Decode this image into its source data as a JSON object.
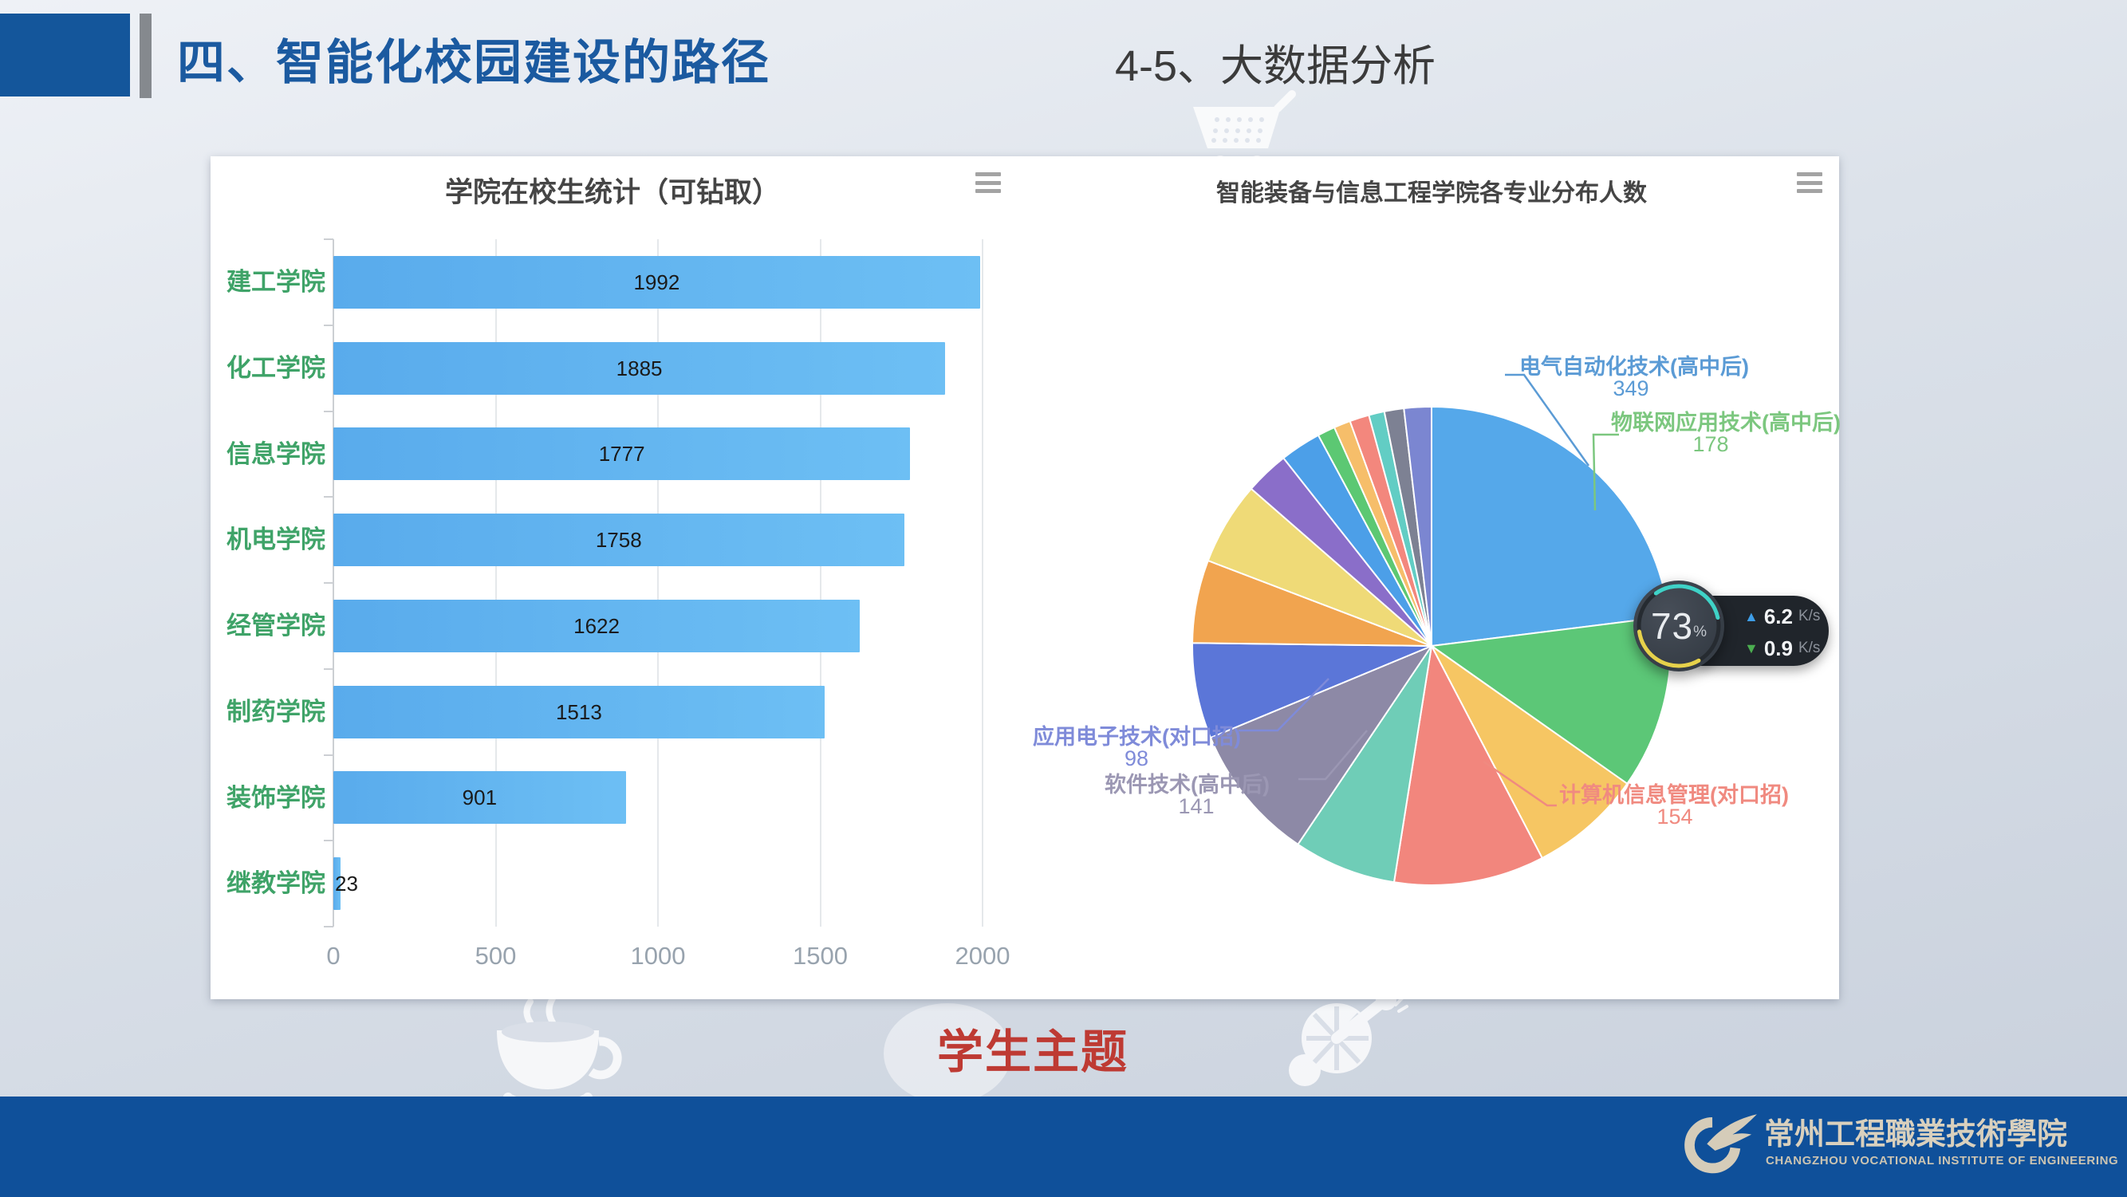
{
  "slide": {
    "title": "四、智能化校园建设的路径",
    "subtitle": "4-5、大数据分析",
    "caption": "学生主题",
    "footer": {
      "logo_text_cn": "常州工程職業技術學院",
      "logo_text_en": "CHANGZHOU VOCATIONAL INSTITUTE OF ENGINEERING",
      "bar_color": "#0F509A"
    },
    "accent_color": "#14569B"
  },
  "chart_data": [
    {
      "type": "bar",
      "orientation": "horizontal",
      "title": "学院在校生统计（可钻取）",
      "categories": [
        "建工学院",
        "化工学院",
        "信息学院",
        "机电学院",
        "经管学院",
        "制药学院",
        "装饰学院",
        "继教学院"
      ],
      "values": [
        1992,
        1885,
        1777,
        1758,
        1622,
        1513,
        901,
        23
      ],
      "xlim": [
        0,
        2000
      ],
      "xticks": [
        "0",
        "500",
        "1000",
        "1500",
        "2000"
      ],
      "grid": true,
      "bar_color": "#5FB0EE",
      "category_color": "#3FA368",
      "legend_position": "none"
    },
    {
      "type": "pie",
      "title": "智能装备与信息工程学院各专业分布人数",
      "legend_position": "none",
      "slices": [
        {
          "name": "电气自动化技术(高中后)",
          "value": 349,
          "color": "#55A8EA",
          "label_color": "#5B9BD5"
        },
        {
          "name": "物联网应用技术(高中后)",
          "value": 178,
          "color": "#5CC777",
          "label_color": "#7CC77F"
        },
        {
          "name": null,
          "value": null,
          "est": 115,
          "color": "#F6C663"
        },
        {
          "name": "计算机信息管理(对口招)",
          "value": 154,
          "color": "#F2867D",
          "label_color": "#F08A80"
        },
        {
          "name": null,
          "value": null,
          "est": 105,
          "color": "#6FCDB7"
        },
        {
          "name": "软件技术(高中后)",
          "value": 141,
          "color": "#8D89A6",
          "label_color": "#9B97B3"
        },
        {
          "name": "应用电子技术(对口招)",
          "value": 98,
          "color": "#5B76D8",
          "label_color": "#7F8BD9"
        },
        {
          "name": null,
          "value": null,
          "est": 85,
          "color": "#F1A44F"
        },
        {
          "name": null,
          "value": null,
          "est": 85,
          "color": "#EFDA77"
        },
        {
          "name": null,
          "value": null,
          "est": 45,
          "color": "#8A6EC9"
        },
        {
          "name": null,
          "value": null,
          "est": 42,
          "color": "#4C9FE8"
        },
        {
          "name": null,
          "value": null,
          "est": 18,
          "color": "#5CC873"
        },
        {
          "name": null,
          "value": null,
          "est": 17,
          "color": "#F6BE6A"
        },
        {
          "name": null,
          "value": null,
          "est": 20,
          "color": "#F3877D"
        },
        {
          "name": null,
          "value": null,
          "est": 16,
          "color": "#62CDC4"
        },
        {
          "name": null,
          "value": null,
          "est": 20,
          "color": "#7D8193"
        },
        {
          "name": null,
          "value": null,
          "est": 28,
          "color": "#7B86D1"
        }
      ]
    }
  ],
  "widget": {
    "percent_value": "73",
    "percent_unit": "%",
    "upload_speed": "6.2",
    "upload_unit": "K/s",
    "download_speed": "0.9",
    "download_unit": "K/s"
  }
}
